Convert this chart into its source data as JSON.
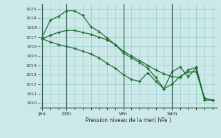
{
  "bg_color": "#cce8e8",
  "grid_color": "#99cccc",
  "line_color": "#1a6b2a",
  "xlabel": "Pression niveau de la mer( hPa )",
  "ylim_min": 1009.5,
  "ylim_max": 1020.5,
  "yticks": [
    1010,
    1011,
    1012,
    1013,
    1014,
    1015,
    1016,
    1017,
    1018,
    1019,
    1020
  ],
  "day_labels": [
    "Jeu",
    "Dim",
    "Ven",
    "Sam"
  ],
  "day_positions": [
    0,
    3,
    10,
    16
  ],
  "xlim_min": -0.3,
  "xlim_max": 21.5,
  "s1x": [
    0,
    1,
    2,
    3,
    4,
    5,
    6,
    7,
    8,
    9,
    10,
    11,
    12,
    13,
    14,
    15,
    16,
    17,
    18,
    19,
    20,
    21
  ],
  "s1y": [
    1017.0,
    1018.8,
    1019.2,
    1019.8,
    1019.8,
    1019.3,
    1018.1,
    1017.6,
    1016.9,
    1016.2,
    1015.3,
    1014.8,
    1014.3,
    1013.7,
    1012.7,
    1011.5,
    1013.3,
    1013.8,
    1012.8,
    1013.7,
    1010.3,
    1010.3
  ],
  "s2x": [
    0,
    1,
    2,
    3,
    4,
    5,
    6,
    7,
    8,
    9,
    10,
    11,
    12,
    13,
    14,
    15,
    16,
    17,
    18,
    19,
    20,
    21
  ],
  "s2y": [
    1016.8,
    1017.2,
    1017.5,
    1017.7,
    1017.7,
    1017.5,
    1017.3,
    1017.0,
    1016.7,
    1016.2,
    1015.5,
    1015.0,
    1014.5,
    1014.0,
    1013.5,
    1013.1,
    1012.8,
    1012.7,
    1013.5,
    1013.8,
    1010.5,
    1010.3
  ],
  "s3x": [
    0,
    1,
    2,
    3,
    4,
    5,
    6,
    7,
    8,
    9,
    10,
    11,
    12,
    13,
    14,
    15,
    16,
    17,
    18,
    19,
    20,
    21
  ],
  "s3y": [
    1016.8,
    1016.5,
    1016.2,
    1016.0,
    1015.8,
    1015.5,
    1015.2,
    1014.8,
    1014.2,
    1013.7,
    1013.0,
    1012.5,
    1012.3,
    1013.2,
    1012.3,
    1011.5,
    1012.0,
    1012.8,
    1013.3,
    1013.3,
    1010.5,
    1010.3
  ]
}
